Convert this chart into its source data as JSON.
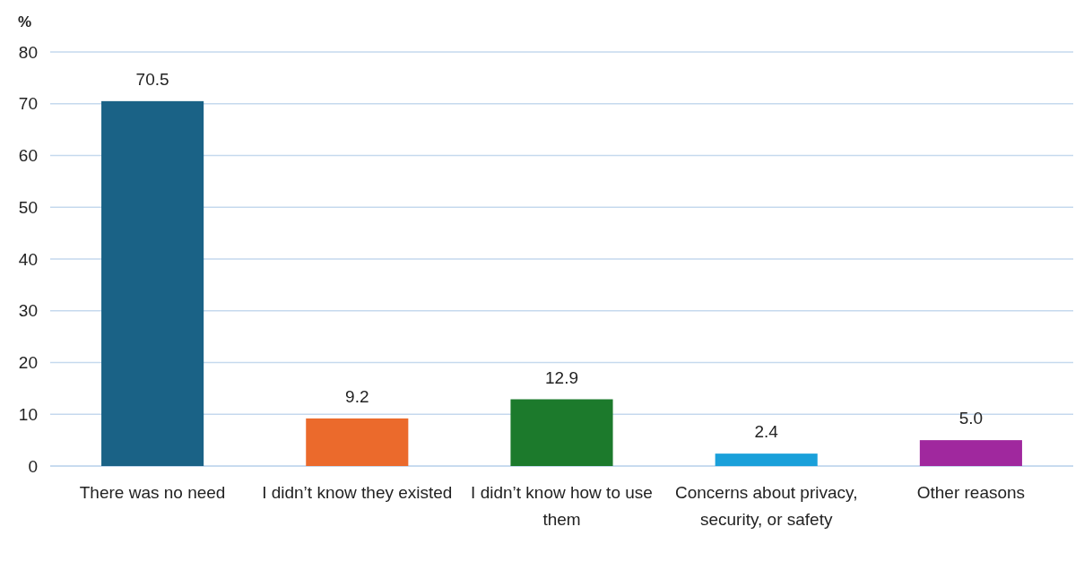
{
  "chart_data": {
    "type": "bar",
    "ylabel": "%",
    "categories": [
      "There was no need",
      "I didn’t know they existed",
      "I didn’t know how to use them",
      "Concerns about privacy, security, or safety",
      "Other reasons"
    ],
    "values": [
      70.5,
      9.2,
      12.9,
      2.4,
      5.0
    ],
    "colors": [
      "#1a6286",
      "#eb6a2c",
      "#1c7a2c",
      "#1aa0da",
      "#a0289e"
    ],
    "value_labels": [
      "70.5",
      "9.2",
      "12.9",
      "2.4",
      "5.0"
    ],
    "ylim": [
      0,
      80
    ],
    "yticks": [
      0,
      10,
      20,
      30,
      40,
      50,
      60,
      70,
      80
    ],
    "grid": "y"
  }
}
